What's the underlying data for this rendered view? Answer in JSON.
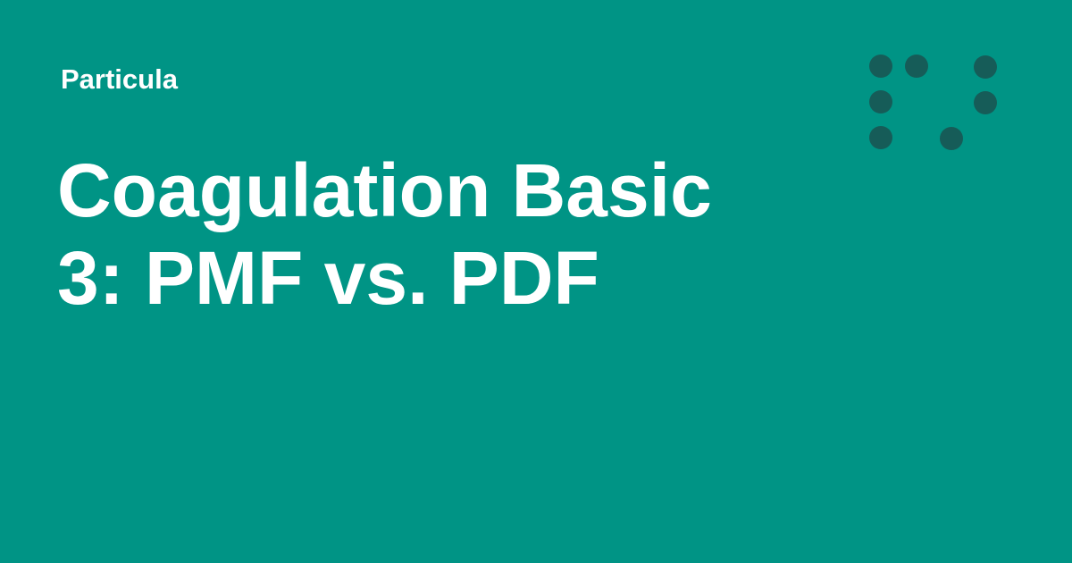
{
  "colors": {
    "background": "#009485",
    "text": "#ffffff",
    "dots": "#165c58"
  },
  "site": {
    "name": "Particula"
  },
  "title": {
    "lines": [
      "Coagulation Basic",
      "3: PMF vs. PDF"
    ]
  },
  "logo": {
    "icon": "dot-grid-logo-icon"
  }
}
